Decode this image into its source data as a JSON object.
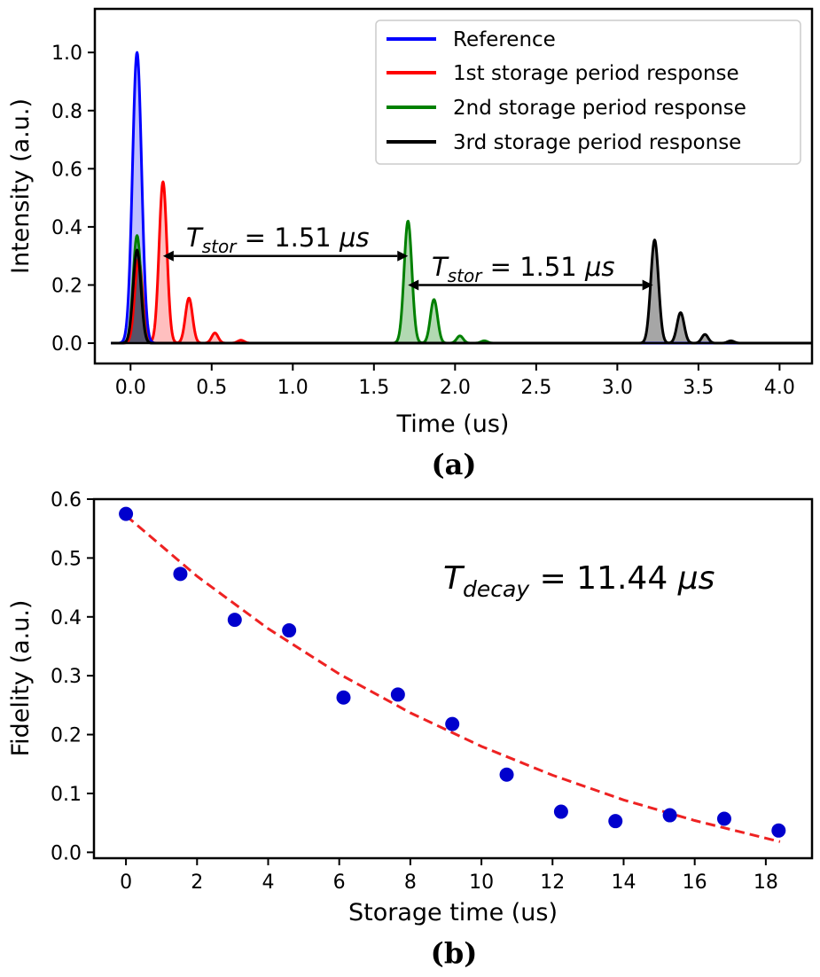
{
  "chart_data": [
    {
      "panel": "(a)",
      "type": "line",
      "xlabel": "Time (us)",
      "ylabel": "Intensity (a.u.)",
      "xlim": [
        -0.22,
        4.2
      ],
      "ylim": [
        -0.07,
        1.15
      ],
      "xticks": [
        "0.0",
        "0.5",
        "1.0",
        "1.5",
        "2.0",
        "2.5",
        "3.0",
        "3.5",
        "4.0"
      ],
      "yticks": [
        "0.0",
        "0.2",
        "0.4",
        "0.6",
        "0.8",
        "1.0"
      ],
      "series": [
        {
          "name": "Reference",
          "color": "#0000ff",
          "peaks": [
            {
              "t": 0.04,
              "height": 1.0,
              "width": 0.028
            }
          ]
        },
        {
          "name": "1st storage period response",
          "color": "#ff0000",
          "peaks": [
            {
              "t": 0.05,
              "height": 0.29,
              "width": 0.024
            },
            {
              "t": 0.2,
              "height": 0.555,
              "width": 0.024
            },
            {
              "t": 0.36,
              "height": 0.155,
              "width": 0.022
            },
            {
              "t": 0.52,
              "height": 0.035,
              "width": 0.02
            },
            {
              "t": 0.68,
              "height": 0.01,
              "width": 0.02
            }
          ]
        },
        {
          "name": "2nd storage period response",
          "color": "#008000",
          "peaks": [
            {
              "t": 0.04,
              "height": 0.37,
              "width": 0.024
            },
            {
              "t": 1.71,
              "height": 0.42,
              "width": 0.024
            },
            {
              "t": 1.87,
              "height": 0.15,
              "width": 0.022
            },
            {
              "t": 2.03,
              "height": 0.025,
              "width": 0.02
            },
            {
              "t": 2.18,
              "height": 0.008,
              "width": 0.02
            }
          ]
        },
        {
          "name": "3rd storage period response",
          "color": "#000000",
          "peaks": [
            {
              "t": 0.04,
              "height": 0.32,
              "width": 0.024
            },
            {
              "t": 3.23,
              "height": 0.355,
              "width": 0.024
            },
            {
              "t": 3.39,
              "height": 0.105,
              "width": 0.022
            },
            {
              "t": 3.54,
              "height": 0.03,
              "width": 0.02
            },
            {
              "t": 3.7,
              "height": 0.008,
              "width": 0.02
            }
          ]
        }
      ],
      "annotations": [
        {
          "label": "T",
          "sub": "stor",
          "eq": " = 1.51 ",
          "unit": "μs",
          "from": 0.2,
          "to": 1.71,
          "y": 0.3
        },
        {
          "label": "T",
          "sub": "stor",
          "eq": " = 1.51 ",
          "unit": "μs",
          "from": 1.71,
          "to": 3.22,
          "y": 0.2
        }
      ],
      "legend_position": "top-right"
    },
    {
      "panel": "(b)",
      "type": "scatter",
      "xlabel": "Storage time (us)",
      "ylabel": "Fidelity (a.u.)",
      "xlim": [
        -0.9,
        19.3
      ],
      "ylim": [
        -0.01,
        0.6
      ],
      "xticks": [
        "0",
        "2",
        "4",
        "6",
        "8",
        "10",
        "12",
        "14",
        "16",
        "18"
      ],
      "yticks": [
        "0.0",
        "0.1",
        "0.2",
        "0.3",
        "0.4",
        "0.5",
        "0.6"
      ],
      "points": {
        "x": [
          0,
          1.53,
          3.06,
          4.59,
          6.12,
          7.65,
          9.18,
          10.71,
          12.24,
          13.77,
          15.3,
          16.83,
          18.36
        ],
        "y": [
          0.575,
          0.473,
          0.395,
          0.377,
          0.263,
          0.268,
          0.218,
          0.132,
          0.069,
          0.053,
          0.063,
          0.057,
          0.037
        ],
        "color": "#0000cd"
      },
      "fit": {
        "style": "dashed",
        "color": "#ee2222",
        "x": [
          0,
          2,
          4,
          6,
          8,
          10,
          12,
          14,
          16,
          18,
          18.4
        ],
        "y": [
          0.572,
          0.469,
          0.38,
          0.303,
          0.237,
          0.18,
          0.131,
          0.089,
          0.054,
          0.024,
          0.018
        ]
      },
      "annotation": {
        "label": "T",
        "sub": "decay",
        "eq": " = 11.44 ",
        "unit": "μs"
      }
    }
  ]
}
